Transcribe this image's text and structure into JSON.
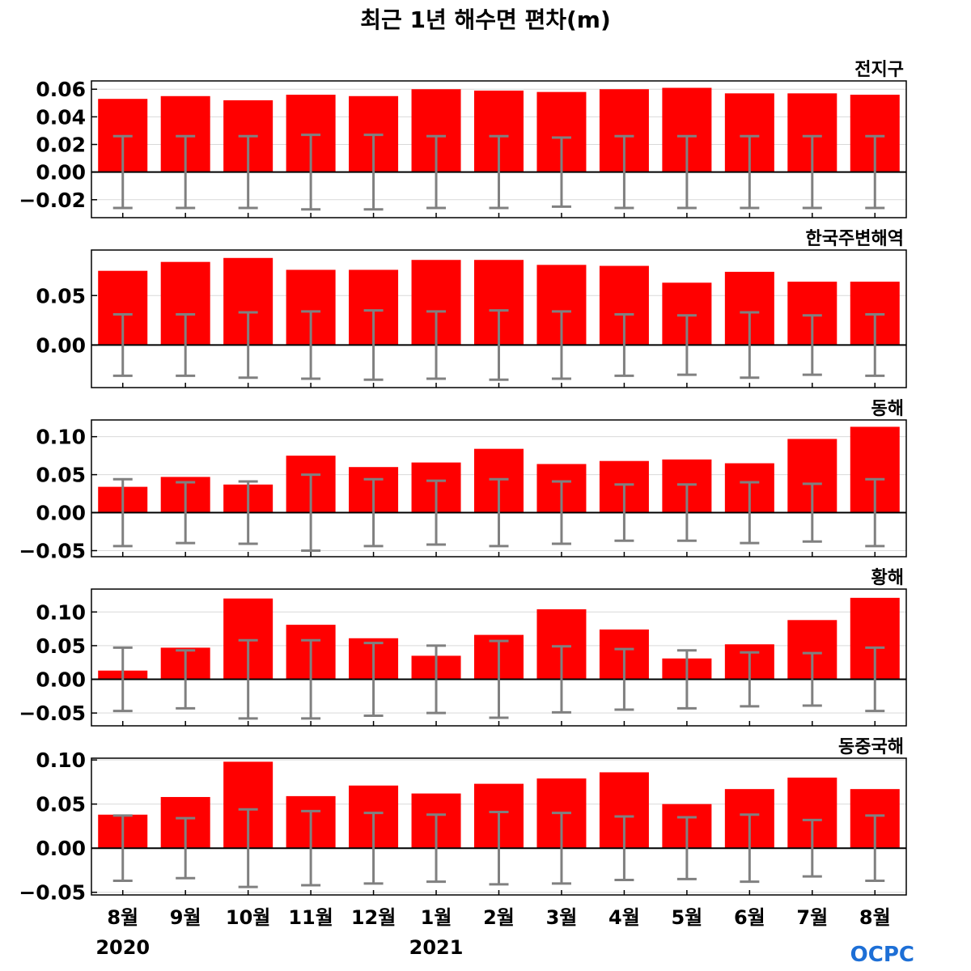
{
  "title": "최근 1년 해수면 편차(m)",
  "logo": "OCPC",
  "colors": {
    "bar": "#ff0000",
    "error": "#808080",
    "zero": "#000000",
    "grid": "#d9d9d9"
  },
  "x_months": [
    "8월",
    "9월",
    "10월",
    "11월",
    "12월",
    "1월",
    "2월",
    "3월",
    "4월",
    "5월",
    "6월",
    "7월",
    "8월"
  ],
  "year_labels": [
    {
      "label": "2020",
      "index": 0
    },
    {
      "label": "2021",
      "index": 5
    }
  ],
  "chart_data": [
    {
      "type": "bar",
      "panel_label": "전지구",
      "categories": [
        "8월",
        "9월",
        "10월",
        "11월",
        "12월",
        "1월",
        "2월",
        "3월",
        "4월",
        "5월",
        "6월",
        "7월",
        "8월"
      ],
      "values": [
        0.053,
        0.055,
        0.052,
        0.056,
        0.055,
        0.06,
        0.059,
        0.058,
        0.06,
        0.061,
        0.057,
        0.057,
        0.056
      ],
      "error": [
        0.026,
        0.026,
        0.026,
        0.027,
        0.027,
        0.026,
        0.026,
        0.025,
        0.026,
        0.026,
        0.026,
        0.026,
        0.026
      ],
      "ylim": [
        -0.033,
        0.066
      ],
      "yticks": [
        -0.02,
        0.0,
        0.02,
        0.04,
        0.06
      ],
      "ytick_labels": [
        "−0.02",
        "0.00",
        "0.02",
        "0.04",
        "0.06"
      ],
      "grid": true
    },
    {
      "type": "bar",
      "panel_label": "한국주변해역",
      "categories": [
        "8월",
        "9월",
        "10월",
        "11월",
        "12월",
        "1월",
        "2월",
        "3월",
        "4월",
        "5월",
        "6월",
        "7월",
        "8월"
      ],
      "values": [
        0.075,
        0.084,
        0.088,
        0.076,
        0.076,
        0.086,
        0.086,
        0.081,
        0.08,
        0.063,
        0.074,
        0.064,
        0.064
      ],
      "error": [
        0.031,
        0.031,
        0.033,
        0.034,
        0.035,
        0.034,
        0.035,
        0.034,
        0.031,
        0.03,
        0.033,
        0.03,
        0.031
      ],
      "ylim": [
        -0.043,
        0.096
      ],
      "yticks": [
        0.0,
        0.05
      ],
      "ytick_labels": [
        "0.00",
        "0.05"
      ],
      "grid": true
    },
    {
      "type": "bar",
      "panel_label": "동해",
      "categories": [
        "8월",
        "9월",
        "10월",
        "11월",
        "12월",
        "1월",
        "2월",
        "3월",
        "4월",
        "5월",
        "6월",
        "7월",
        "8월"
      ],
      "values": [
        0.034,
        0.047,
        0.037,
        0.075,
        0.06,
        0.066,
        0.084,
        0.064,
        0.068,
        0.07,
        0.065,
        0.097,
        0.113
      ],
      "error": [
        0.044,
        0.04,
        0.041,
        0.05,
        0.044,
        0.042,
        0.044,
        0.041,
        0.037,
        0.037,
        0.04,
        0.038,
        0.044
      ],
      "ylim": [
        -0.058,
        0.122
      ],
      "yticks": [
        -0.05,
        0.0,
        0.05,
        0.1
      ],
      "ytick_labels": [
        "−0.05",
        "0.00",
        "0.05",
        "0.10"
      ],
      "grid": true
    },
    {
      "type": "bar",
      "panel_label": "황해",
      "categories": [
        "8월",
        "9월",
        "10월",
        "11월",
        "12월",
        "1월",
        "2월",
        "3월",
        "4월",
        "5월",
        "6월",
        "7월",
        "8월"
      ],
      "values": [
        0.013,
        0.047,
        0.12,
        0.081,
        0.061,
        0.035,
        0.066,
        0.104,
        0.074,
        0.031,
        0.052,
        0.088,
        0.121
      ],
      "error": [
        0.047,
        0.043,
        0.058,
        0.058,
        0.054,
        0.05,
        0.057,
        0.049,
        0.045,
        0.043,
        0.04,
        0.039,
        0.047
      ],
      "ylim": [
        -0.069,
        0.134
      ],
      "yticks": [
        -0.05,
        0.0,
        0.05,
        0.1
      ],
      "ytick_labels": [
        "−0.05",
        "0.00",
        "0.05",
        "0.10"
      ],
      "grid": true
    },
    {
      "type": "bar",
      "panel_label": "동중국해",
      "categories": [
        "8월",
        "9월",
        "10월",
        "11월",
        "12월",
        "1월",
        "2월",
        "3월",
        "4월",
        "5월",
        "6월",
        "7월",
        "8월"
      ],
      "values": [
        0.038,
        0.058,
        0.098,
        0.059,
        0.071,
        0.062,
        0.073,
        0.079,
        0.086,
        0.05,
        0.067,
        0.08,
        0.067
      ],
      "error": [
        0.037,
        0.034,
        0.044,
        0.042,
        0.04,
        0.038,
        0.041,
        0.04,
        0.036,
        0.035,
        0.038,
        0.032,
        0.037
      ],
      "ylim": [
        -0.053,
        0.102
      ],
      "yticks": [
        -0.05,
        0.0,
        0.05,
        0.1
      ],
      "ytick_labels": [
        "−0.05",
        "0.00",
        "0.05",
        "0.10"
      ],
      "grid": true
    }
  ]
}
